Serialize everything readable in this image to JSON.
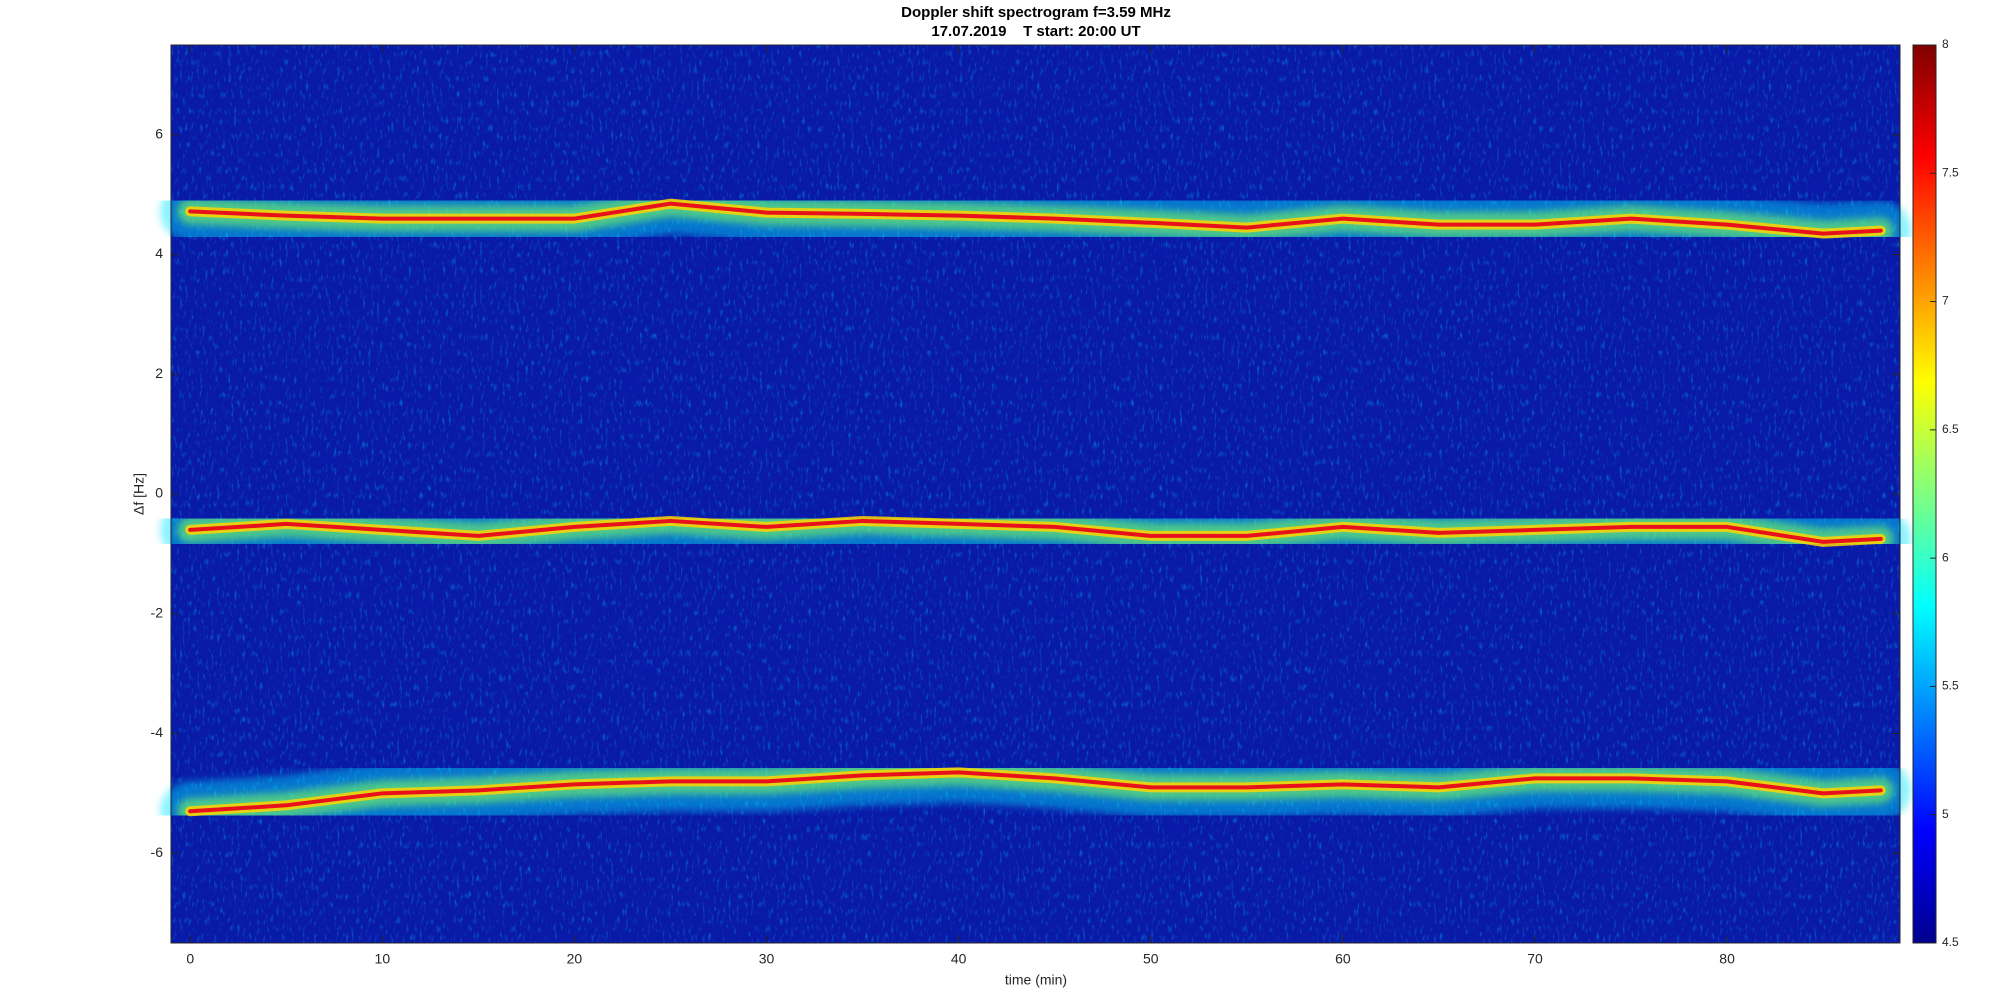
{
  "chart_data": {
    "type": "spectrogram",
    "title": "Doppler shift spectrogram f=3.59 MHz",
    "subtitle": "17.07.2019    T start: 20:00 UT",
    "xlabel": "time (min)",
    "ylabel": "Δf [Hz]",
    "xlim": [
      -1,
      89
    ],
    "ylim": [
      -7.5,
      7.5
    ],
    "xticks": [
      0,
      10,
      20,
      30,
      40,
      50,
      60,
      70,
      80
    ],
    "yticks": [
      -6,
      -4,
      -2,
      0,
      2,
      4,
      6
    ],
    "clim": [
      4.5,
      8
    ],
    "cticks": [
      4.5,
      5,
      5.5,
      6,
      6.5,
      7,
      7.5,
      8
    ],
    "colormap": "jet",
    "x": [
      0,
      5,
      10,
      15,
      20,
      25,
      30,
      35,
      40,
      45,
      50,
      55,
      60,
      65,
      70,
      75,
      80,
      85,
      88
    ],
    "series": [
      {
        "values": [
          4.72,
          4.65,
          4.6,
          4.6,
          4.6,
          4.85,
          4.7,
          4.68,
          4.65,
          4.6,
          4.53,
          4.45,
          4.6,
          4.5,
          4.5,
          4.6,
          4.5,
          4.35,
          4.4
        ]
      },
      {
        "values": [
          -0.6,
          -0.5,
          -0.6,
          -0.7,
          -0.55,
          -0.45,
          -0.55,
          -0.45,
          -0.5,
          -0.55,
          -0.7,
          -0.7,
          -0.55,
          -0.65,
          -0.6,
          -0.55,
          -0.55,
          -0.8,
          -0.75
        ]
      },
      {
        "values": [
          -5.3,
          -5.2,
          -5.0,
          -4.95,
          -4.85,
          -4.8,
          -4.8,
          -4.7,
          -4.65,
          -4.75,
          -4.9,
          -4.9,
          -4.85,
          -4.9,
          -4.75,
          -4.75,
          -4.8,
          -5.0,
          -4.95
        ]
      }
    ]
  }
}
